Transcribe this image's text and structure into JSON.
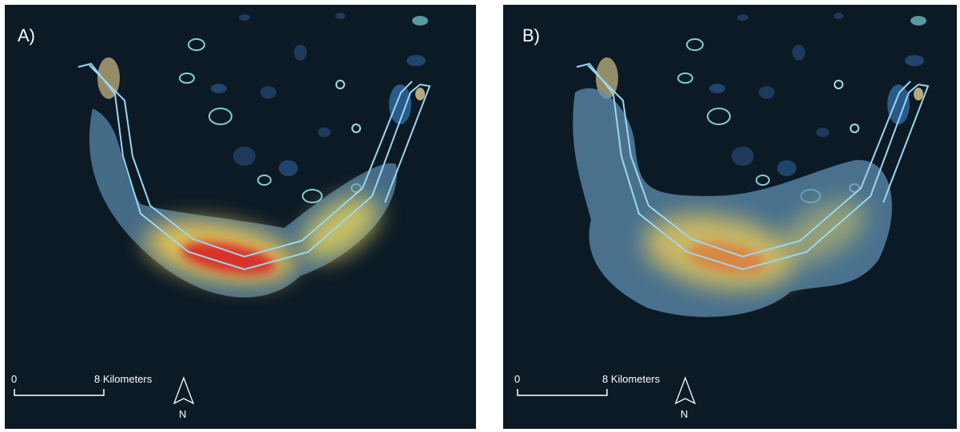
{
  "panels": [
    {
      "label": "A)",
      "scale_bar": {
        "start": "0",
        "end": "8 Kilometers"
      },
      "north": "N"
    },
    {
      "label": "B)",
      "scale_bar": {
        "start": "0",
        "end": "8 Kilometers"
      },
      "north": "N"
    }
  ]
}
